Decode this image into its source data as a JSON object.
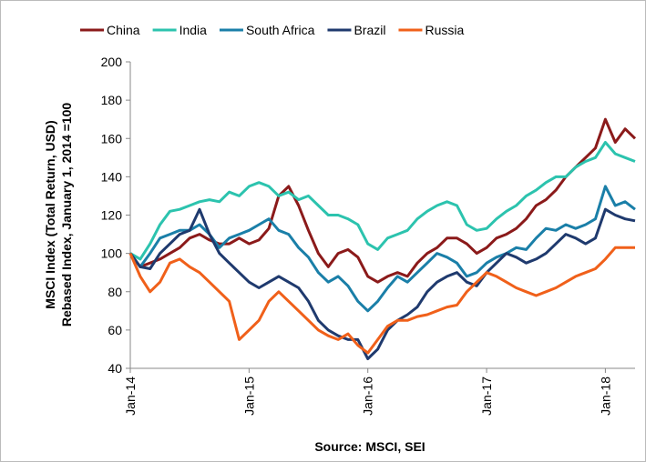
{
  "chart_data": {
    "type": "line",
    "y_label_lines": [
      "MSCI Index (Total Return, USD)",
      "Rebased Index, January 1, 2014 =100"
    ],
    "x_label": "Source: MSCI, SEI",
    "x": [
      "2014-01",
      "2014-02",
      "2014-03",
      "2014-04",
      "2014-05",
      "2014-06",
      "2014-07",
      "2014-08",
      "2014-09",
      "2014-10",
      "2014-11",
      "2014-12",
      "2015-01",
      "2015-02",
      "2015-03",
      "2015-04",
      "2015-05",
      "2015-06",
      "2015-07",
      "2015-08",
      "2015-09",
      "2015-10",
      "2015-11",
      "2015-12",
      "2016-01",
      "2016-02",
      "2016-03",
      "2016-04",
      "2016-05",
      "2016-06",
      "2016-07",
      "2016-08",
      "2016-09",
      "2016-10",
      "2016-11",
      "2016-12",
      "2017-01",
      "2017-02",
      "2017-03",
      "2017-04",
      "2017-05",
      "2017-06",
      "2017-07",
      "2017-08",
      "2017-09",
      "2017-10",
      "2017-11",
      "2017-12",
      "2018-01",
      "2018-02",
      "2018-03",
      "2018-04"
    ],
    "xlim": [
      "2014-01",
      "2018-04"
    ],
    "xticks": [
      {
        "value": "2014-01",
        "label": "Jan-14"
      },
      {
        "value": "2015-01",
        "label": "Jan-15"
      },
      {
        "value": "2016-01",
        "label": "Jan-16"
      },
      {
        "value": "2017-01",
        "label": "Jan-17"
      },
      {
        "value": "2018-01",
        "label": "Jan-18"
      }
    ],
    "ylim": [
      40,
      200
    ],
    "yticks": [
      40,
      60,
      80,
      100,
      120,
      140,
      160,
      180,
      200
    ],
    "grid": false,
    "legend": "top",
    "series": [
      {
        "name": "China",
        "color": "#8b1a1a",
        "values": [
          100,
          93,
          95,
          97,
          100,
          103,
          108,
          110,
          107,
          105,
          105,
          108,
          105,
          107,
          113,
          130,
          135,
          125,
          112,
          100,
          93,
          100,
          102,
          98,
          88,
          85,
          88,
          90,
          88,
          95,
          100,
          103,
          108,
          108,
          105,
          100,
          103,
          108,
          110,
          113,
          118,
          125,
          128,
          133,
          140,
          145,
          150,
          155,
          170,
          158,
          165,
          160
        ]
      },
      {
        "name": "India",
        "color": "#2cc3ae",
        "values": [
          100,
          97,
          105,
          115,
          122,
          123,
          125,
          127,
          128,
          127,
          132,
          130,
          135,
          137,
          135,
          130,
          132,
          128,
          130,
          125,
          120,
          120,
          118,
          115,
          105,
          102,
          108,
          110,
          112,
          118,
          122,
          125,
          127,
          125,
          115,
          112,
          113,
          118,
          122,
          125,
          130,
          133,
          137,
          140,
          140,
          145,
          148,
          150,
          158,
          152,
          150,
          148
        ]
      },
      {
        "name": "South Africa",
        "color": "#1a7fa8",
        "values": [
          100,
          93,
          100,
          108,
          110,
          112,
          112,
          115,
          110,
          103,
          108,
          110,
          112,
          115,
          118,
          112,
          110,
          103,
          98,
          90,
          85,
          88,
          83,
          75,
          70,
          75,
          82,
          88,
          85,
          90,
          95,
          100,
          98,
          95,
          88,
          90,
          95,
          98,
          100,
          103,
          102,
          108,
          113,
          112,
          115,
          113,
          115,
          118,
          135,
          125,
          127,
          123
        ]
      },
      {
        "name": "Brazil",
        "color": "#1f3a6e",
        "values": [
          100,
          93,
          92,
          100,
          105,
          110,
          112,
          123,
          110,
          100,
          95,
          90,
          85,
          82,
          85,
          88,
          85,
          82,
          75,
          65,
          60,
          57,
          55,
          55,
          45,
          50,
          60,
          65,
          68,
          72,
          80,
          85,
          88,
          90,
          85,
          83,
          90,
          95,
          100,
          98,
          95,
          97,
          100,
          105,
          110,
          108,
          105,
          108,
          123,
          120,
          118,
          117
        ]
      },
      {
        "name": "Russia",
        "color": "#f0601a",
        "values": [
          100,
          88,
          80,
          85,
          95,
          97,
          93,
          90,
          85,
          80,
          75,
          55,
          60,
          65,
          75,
          80,
          75,
          70,
          65,
          60,
          57,
          55,
          58,
          52,
          48,
          55,
          62,
          65,
          65,
          67,
          68,
          70,
          72,
          73,
          80,
          85,
          90,
          88,
          85,
          82,
          80,
          78,
          80,
          82,
          85,
          88,
          90,
          92,
          97,
          103,
          103,
          103
        ]
      }
    ]
  }
}
